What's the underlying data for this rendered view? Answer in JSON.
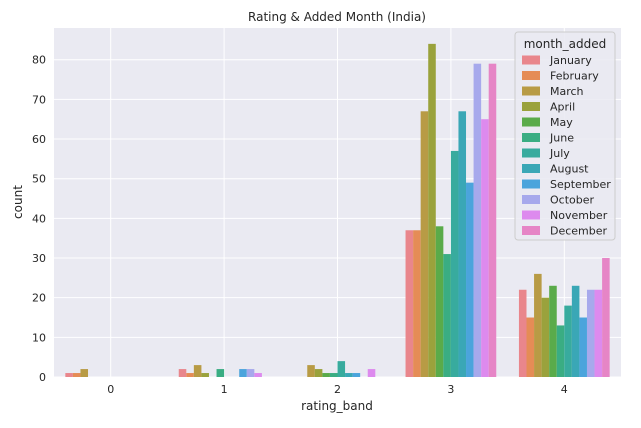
{
  "chart_data": {
    "type": "bar",
    "title": "Rating & Added Month (India)",
    "xlabel": "rating_band",
    "ylabel": "count",
    "categories": [
      "0",
      "1",
      "2",
      "3",
      "4"
    ],
    "ylim": [
      0,
      88
    ],
    "yticks": [
      0,
      10,
      20,
      30,
      40,
      50,
      60,
      70,
      80
    ],
    "grid": true,
    "legend": {
      "title": "month_added",
      "position": "top-right"
    },
    "series": [
      {
        "name": "January",
        "color": "#e9868c",
        "values": [
          1,
          2,
          0,
          37,
          22
        ]
      },
      {
        "name": "February",
        "color": "#e58c56",
        "values": [
          1,
          1,
          0,
          37,
          15
        ]
      },
      {
        "name": "March",
        "color": "#b89b45",
        "values": [
          2,
          3,
          3,
          67,
          26
        ]
      },
      {
        "name": "April",
        "color": "#9aa23c",
        "values": [
          0,
          1,
          2,
          84,
          20
        ]
      },
      {
        "name": "May",
        "color": "#5aab4a",
        "values": [
          0,
          0,
          1,
          38,
          23
        ]
      },
      {
        "name": "June",
        "color": "#3aad83",
        "values": [
          0,
          2,
          1,
          31,
          13
        ]
      },
      {
        "name": "July",
        "color": "#38ab9e",
        "values": [
          0,
          0,
          4,
          57,
          18
        ]
      },
      {
        "name": "August",
        "color": "#3aa7b6",
        "values": [
          0,
          0,
          1,
          67,
          23
        ]
      },
      {
        "name": "September",
        "color": "#4ba4dc",
        "values": [
          0,
          2,
          1,
          49,
          15
        ]
      },
      {
        "name": "October",
        "color": "#a7a9ec",
        "values": [
          0,
          2,
          0,
          79,
          22
        ]
      },
      {
        "name": "November",
        "color": "#dd8aee",
        "values": [
          0,
          1,
          2,
          65,
          22
        ]
      },
      {
        "name": "December",
        "color": "#e685c6",
        "values": [
          0,
          0,
          0,
          79,
          30
        ]
      }
    ]
  }
}
